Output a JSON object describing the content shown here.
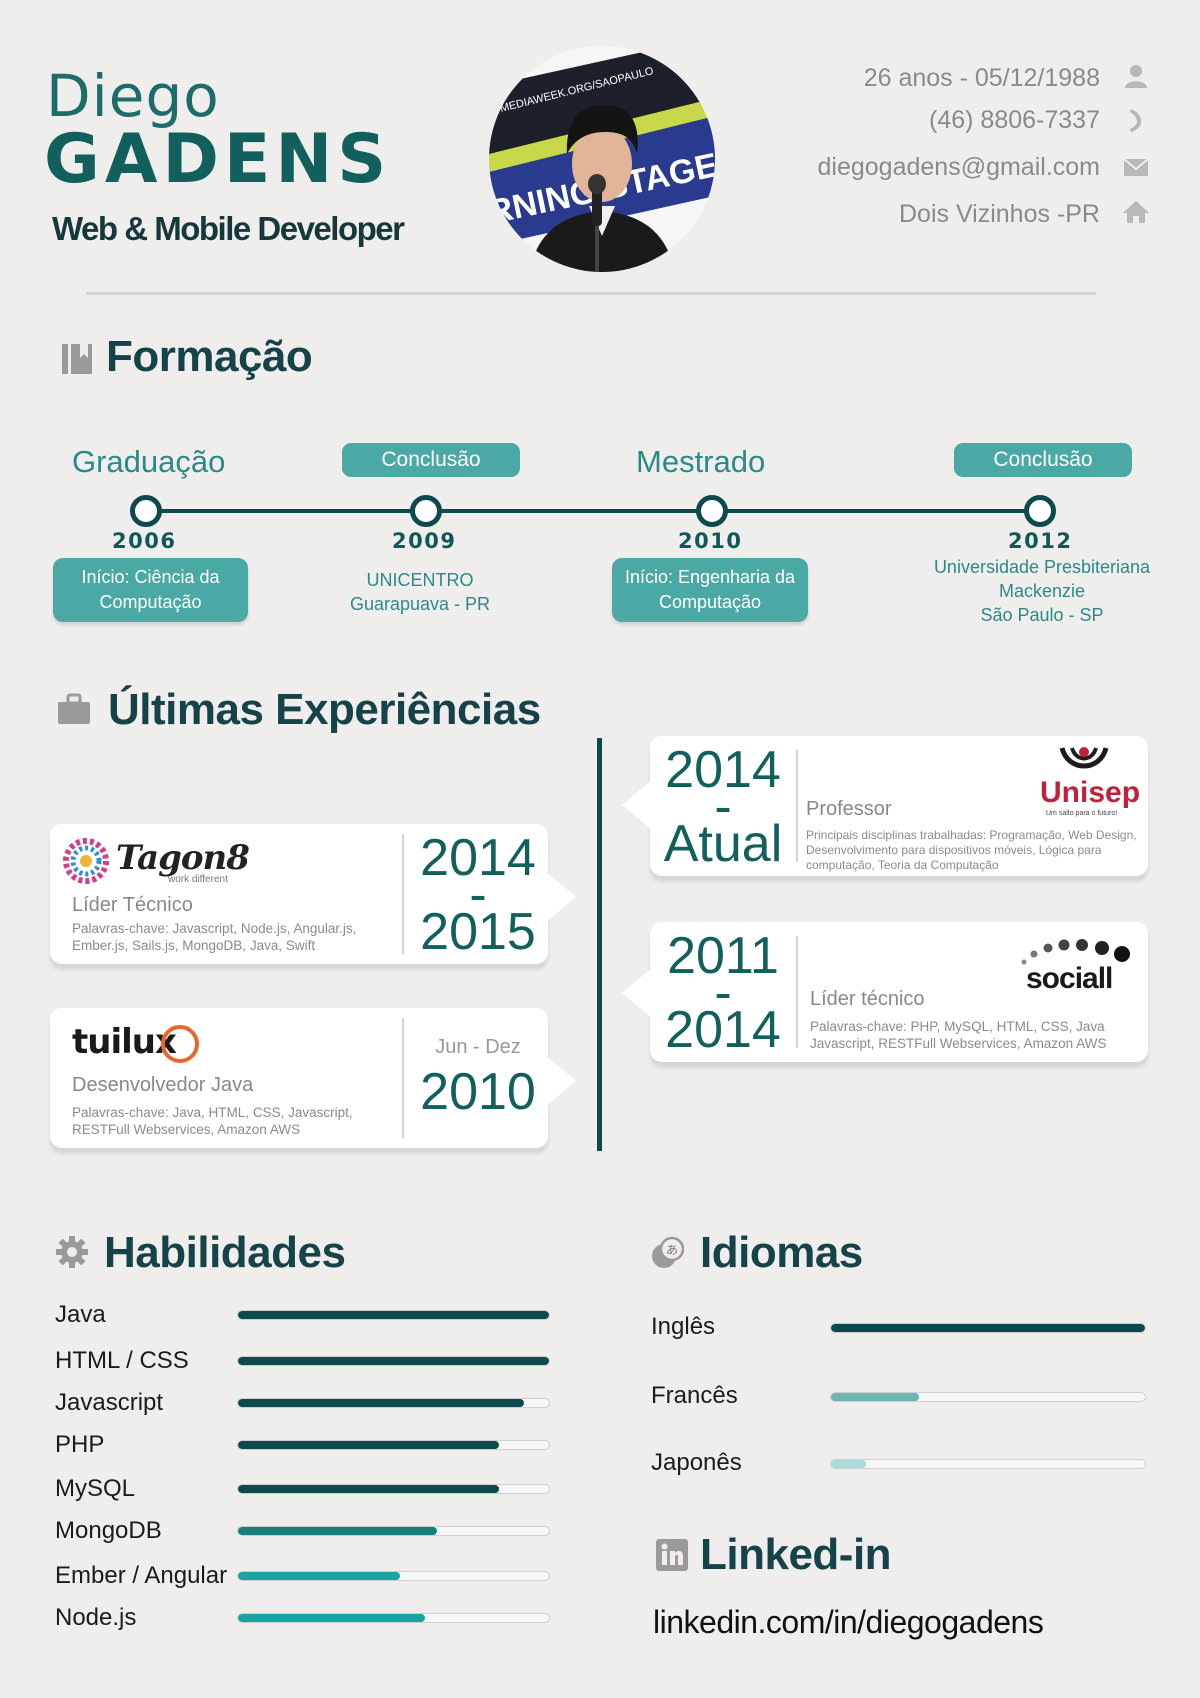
{
  "header": {
    "first_name": "Diego",
    "last_name": "GADENS",
    "role": "Web & Mobile Developer",
    "photo_banner_top": "MEDIAWEEK.ORG/SAOPAULO",
    "photo_banner_mid": "RNING STAGE",
    "contacts": [
      {
        "text": "26 anos - 05/12/1988",
        "icon": "person-icon"
      },
      {
        "text": "(46) 8806-7337",
        "icon": "phone-icon"
      },
      {
        "text": "diegogadens@gmail.com",
        "icon": "envelope-icon"
      },
      {
        "text": "Dois Vizinhos -PR",
        "icon": "home-icon"
      }
    ]
  },
  "formacao": {
    "title": "Formação",
    "stops": [
      {
        "label": "Graduação",
        "year": "2006",
        "box": "Início: Ciência da Computação"
      },
      {
        "label": "Conclusão",
        "year": "2009",
        "text_line1": "UNICENTRO",
        "text_line2": "Guarapuava - PR"
      },
      {
        "label": "Mestrado",
        "year": "2010",
        "box": "Início: Engenharia da Computação"
      },
      {
        "label": "Conclusão",
        "year": "2012",
        "text_line1": "Universidade Presbiteriana",
        "text_line2": "Mackenzie",
        "text_line3": "São Paulo - SP"
      }
    ]
  },
  "experiencias": {
    "title": "Últimas Experiências",
    "left": [
      {
        "logo": "Tagon8",
        "logo_sub": "work different",
        "role": "Líder Técnico",
        "desc": "Palavras-chave: Javascript, Node.js, Angular.js, Ember.js, Sails.js, MongoDB, Java, Swift",
        "year_top": "2014",
        "year_dash": "-",
        "year_bottom": "2015"
      },
      {
        "logo": "tuilux",
        "role": "Desenvolvedor Java",
        "desc": "Palavras-chave: Java, HTML, CSS, Javascript, RESTFull Webservices, Amazon AWS",
        "period": "Jun - Dez",
        "year": "2010"
      }
    ],
    "right": [
      {
        "logo": "Unisep",
        "logo_sub": "Um salto para o futuro!",
        "role": "Professor",
        "desc": "Principais disciplinas trabalhadas: Programação, Web Design, Desenvolvimento para dispositivos móveis, Lógica para computação, Teoria da Computação",
        "year_top": "2014",
        "year_dash": "-",
        "year_bottom": "Atual"
      },
      {
        "logo": "sociall",
        "role": "Líder técnico",
        "desc": "Palavras-chave: PHP, MySQL, HTML, CSS, Java Javascript, RESTFull Webservices, Amazon AWS",
        "year_top": "2011",
        "year_dash": "-",
        "year_bottom": "2014"
      }
    ]
  },
  "habilidades": {
    "title": "Habilidades",
    "skills": [
      {
        "name": "Java",
        "level": 1.0,
        "color": "#0d4a4d"
      },
      {
        "name": "HTML / CSS",
        "level": 1.0,
        "color": "#0d4a4d"
      },
      {
        "name": "Javascript",
        "level": 0.92,
        "color": "#0d4a4d"
      },
      {
        "name": "PHP",
        "level": 0.84,
        "color": "#0d4a4d"
      },
      {
        "name": "MySQL",
        "level": 0.84,
        "color": "#0d4a4d"
      },
      {
        "name": "MongoDB",
        "level": 0.64,
        "color": "#157f7c"
      },
      {
        "name": "Ember / Angular",
        "level": 0.52,
        "color": "#1aa3a3"
      },
      {
        "name": "Node.js",
        "level": 0.6,
        "color": "#1aa3a3"
      }
    ]
  },
  "idiomas": {
    "title": "Idiomas",
    "langs": [
      {
        "name": "Inglês",
        "level": 1.0,
        "color": "#0d4a4d"
      },
      {
        "name": "Francês",
        "level": 0.28,
        "color": "#6fb3b3"
      },
      {
        "name": "Japonês",
        "level": 0.11,
        "color": "#a9dcdc"
      }
    ]
  },
  "linkedin": {
    "title": "Linked-in",
    "url": "linkedin.com/in/diegogadens"
  }
}
